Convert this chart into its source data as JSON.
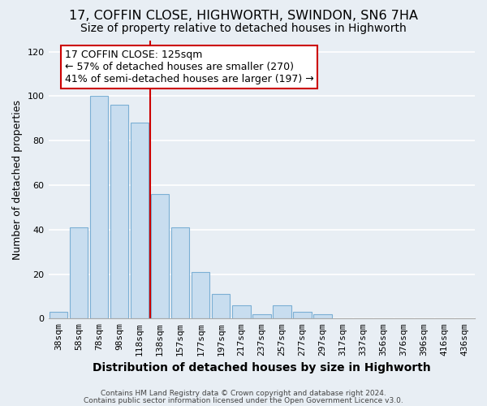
{
  "title": "17, COFFIN CLOSE, HIGHWORTH, SWINDON, SN6 7HA",
  "subtitle": "Size of property relative to detached houses in Highworth",
  "xlabel": "Distribution of detached houses by size in Highworth",
  "ylabel": "Number of detached properties",
  "bar_labels": [
    "38sqm",
    "58sqm",
    "78sqm",
    "98sqm",
    "118sqm",
    "138sqm",
    "157sqm",
    "177sqm",
    "197sqm",
    "217sqm",
    "237sqm",
    "257sqm",
    "277sqm",
    "297sqm",
    "317sqm",
    "337sqm",
    "356sqm",
    "376sqm",
    "396sqm",
    "416sqm",
    "436sqm"
  ],
  "bar_values": [
    3,
    41,
    100,
    96,
    88,
    56,
    41,
    21,
    11,
    6,
    2,
    6,
    3,
    2,
    0,
    0,
    0,
    0,
    0,
    0,
    0
  ],
  "bar_color": "#c8ddef",
  "bar_edge_color": "#7bafd4",
  "highlight_bar_index": 4,
  "vline_color": "#cc0000",
  "ylim": [
    0,
    125
  ],
  "yticks": [
    0,
    20,
    40,
    60,
    80,
    100,
    120
  ],
  "annotation_title": "17 COFFIN CLOSE: 125sqm",
  "annotation_line1": "← 57% of detached houses are smaller (270)",
  "annotation_line2": "41% of semi-detached houses are larger (197) →",
  "annotation_box_facecolor": "#ffffff",
  "annotation_box_edgecolor": "#cc0000",
  "footnote1": "Contains HM Land Registry data © Crown copyright and database right 2024.",
  "footnote2": "Contains public sector information licensed under the Open Government Licence v3.0.",
  "background_color": "#e8eef4",
  "grid_color": "#ffffff",
  "title_fontsize": 11.5,
  "subtitle_fontsize": 10,
  "annotation_fontsize": 9,
  "ylabel_fontsize": 9,
  "xlabel_fontsize": 10,
  "tick_fontsize": 8,
  "footnote_fontsize": 6.5
}
